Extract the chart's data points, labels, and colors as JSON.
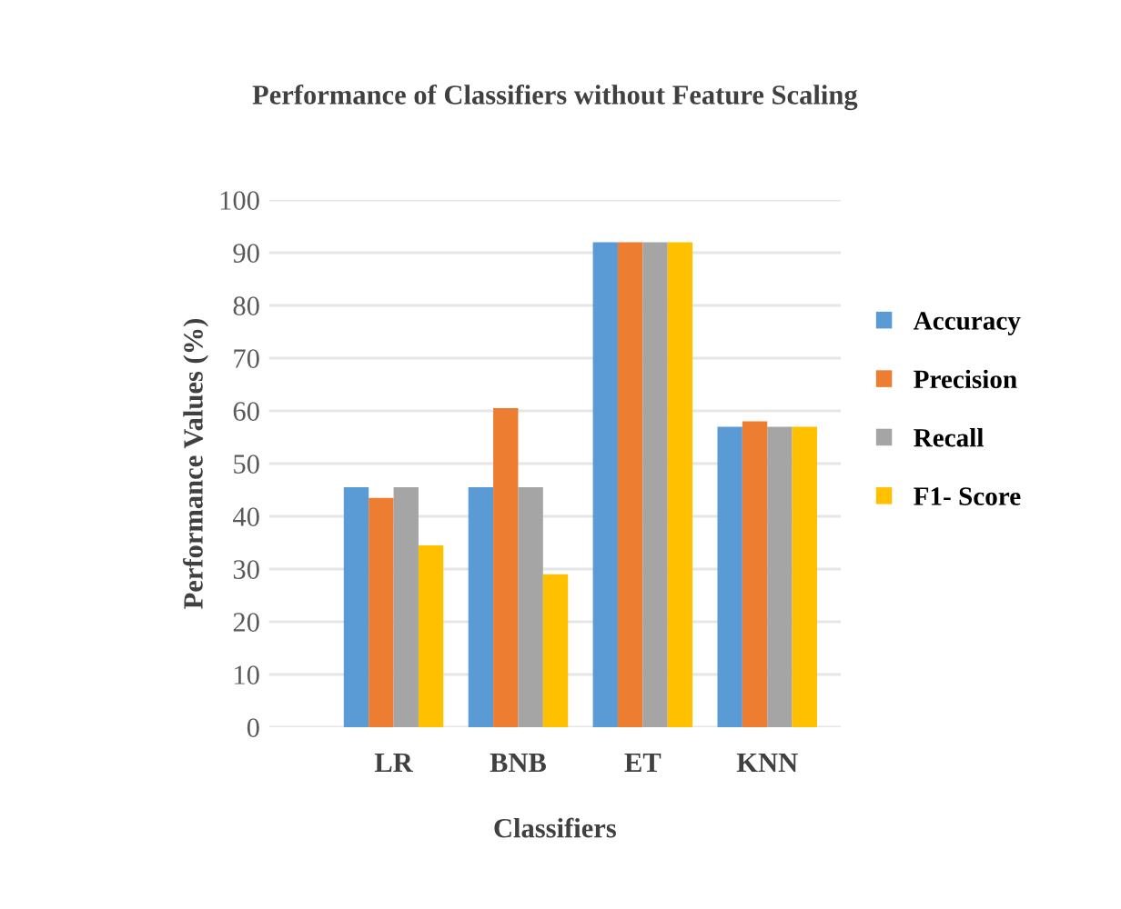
{
  "chart_data": {
    "type": "bar",
    "title": "Performance of Classifiers without Feature Scaling",
    "xlabel": "Classifiers",
    "ylabel": "Performance Values (%)",
    "categories": [
      null,
      "LR",
      "BNB",
      "ET",
      "KNN"
    ],
    "series": [
      {
        "name": "Accuracy",
        "color": "#5b9bd5",
        "values": [
          null,
          45.5,
          45.5,
          92,
          57
        ]
      },
      {
        "name": "Precision",
        "color": "#ed7d31",
        "values": [
          null,
          43.5,
          60.5,
          92,
          58
        ]
      },
      {
        "name": "Recall",
        "color": "#a5a5a5",
        "values": [
          null,
          45.5,
          45.5,
          92,
          57
        ]
      },
      {
        "name": "F1- Score",
        "color": "#ffc000",
        "values": [
          null,
          34.5,
          29,
          92,
          57
        ]
      }
    ],
    "ylim": [
      0,
      100
    ],
    "yticks": [
      0,
      10,
      20,
      30,
      40,
      50,
      60,
      70,
      80,
      90,
      100
    ],
    "grid": "y",
    "legend": "right"
  }
}
